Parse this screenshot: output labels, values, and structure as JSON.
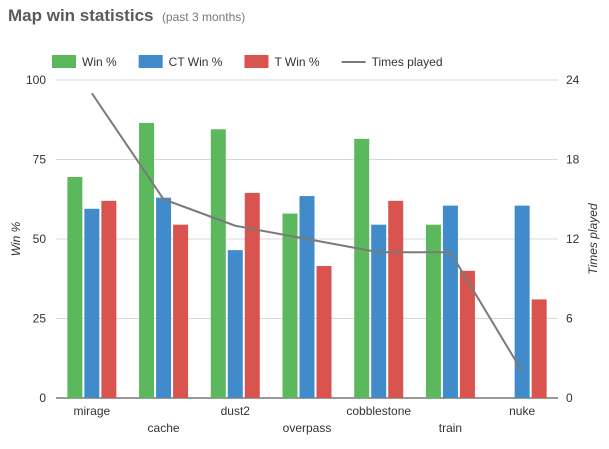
{
  "header": {
    "title": "Map win statistics",
    "subtitle": "(past 3 months)"
  },
  "chart_data": {
    "type": "bar",
    "categories": [
      "mirage",
      "cache",
      "dust2",
      "overpass",
      "cobblestone",
      "train",
      "nuke"
    ],
    "series": [
      {
        "name": "Win %",
        "type": "bar",
        "axis": "left",
        "color": "#5cb85c",
        "values": [
          69.5,
          86.5,
          84.5,
          58,
          81.5,
          54.5,
          null
        ]
      },
      {
        "name": "CT Win %",
        "type": "bar",
        "axis": "left",
        "color": "#428bca",
        "values": [
          59.5,
          63,
          46.5,
          63.5,
          54.5,
          60.5,
          60.5
        ]
      },
      {
        "name": "T Win %",
        "type": "bar",
        "axis": "left",
        "color": "#d9534f",
        "values": [
          62,
          54.5,
          64.5,
          41.5,
          62,
          40,
          31
        ]
      },
      {
        "name": "Times played",
        "type": "line",
        "axis": "right",
        "color": "#7a7a7a",
        "values": [
          23,
          15,
          13,
          12,
          11,
          11,
          2
        ]
      }
    ],
    "ylabel": "Win %",
    "y2label": "Times played",
    "ylim": [
      0,
      100
    ],
    "y2lim": [
      0,
      24
    ],
    "yticks": [
      "0",
      "25",
      "50",
      "75",
      "100"
    ],
    "y2ticks": [
      "0",
      "6",
      "12",
      "18",
      "24"
    ],
    "legend_position": "top",
    "grid": true
  }
}
